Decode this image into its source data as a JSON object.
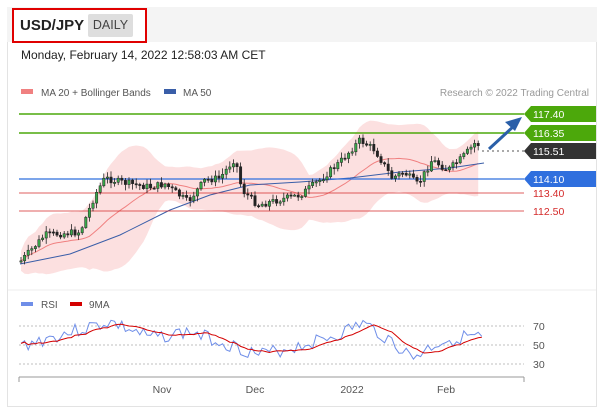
{
  "header": {
    "symbol": "USD/JPY",
    "period": "DAILY",
    "timestamp": "Monday, February 14, 2022 12:58:03 AM CET"
  },
  "legend": {
    "ma20": "MA 20 + Bollinger Bands",
    "ma50": "MA 50",
    "credit": "Research © 2022 Trading Central"
  },
  "levels": [
    {
      "value": "117.40",
      "kind": "resistance"
    },
    {
      "value": "116.35",
      "kind": "resistance"
    },
    {
      "value": "115.51",
      "kind": "last"
    },
    {
      "value": "114.10",
      "kind": "pivot"
    },
    {
      "value": "113.40",
      "kind": "support"
    },
    {
      "value": "112.50",
      "kind": "support"
    }
  ],
  "rsi_legend": {
    "rsi": "RSI",
    "ma": "9MA"
  },
  "rsi_ticks": [
    "70",
    "50",
    "30"
  ],
  "x_axis": [
    "Nov",
    "Dec",
    "2022",
    "Feb"
  ],
  "colors": {
    "resistance": "#4ca80b",
    "last": "#333333",
    "pivot": "#2f6fde",
    "support": "#d42a2a",
    "ma20": "#f08080",
    "ma50": "#3a5ea8",
    "rsi": "#6f8ee8",
    "rsi_ma": "#d40000"
  }
}
